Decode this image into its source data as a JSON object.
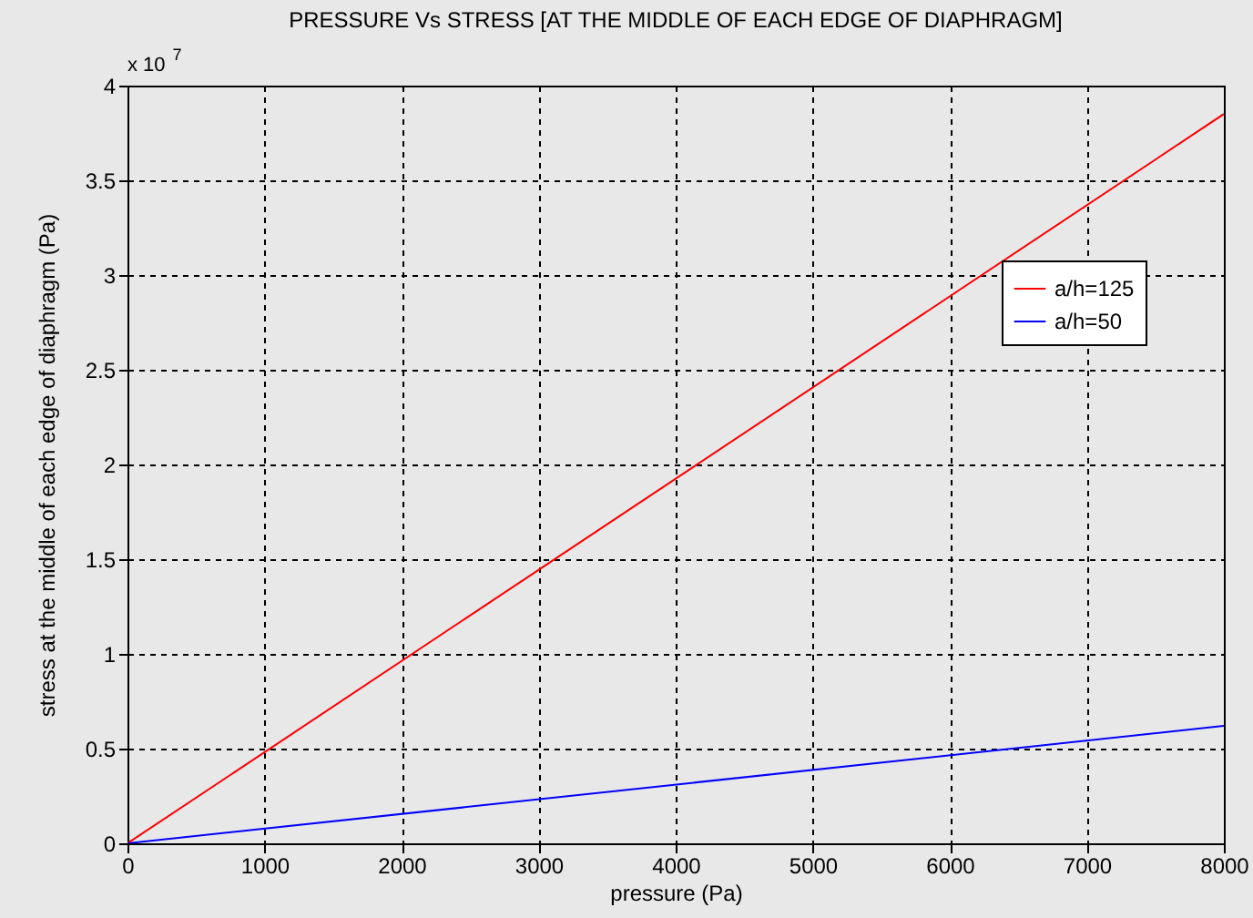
{
  "chart_data": {
    "type": "line",
    "title": "PRESSURE Vs STRESS [AT THE MIDDLE OF EACH EDGE OF DIAPHRAGM]",
    "xlabel": "pressure (Pa)",
    "ylabel": "stress at the middle of each edge of diaphragm (Pa)",
    "annotations": [
      "x 10$^{7}$"
    ],
    "x": [
      0,
      8000
    ],
    "series": [
      {
        "name": "a/h=125",
        "color": "#ff0000",
        "values": [
          0,
          3.85
        ]
      },
      {
        "name": "a/h=50",
        "color": "#0000ff",
        "values": [
          0,
          0.62
        ]
      }
    ],
    "xlim": [
      0,
      8000
    ],
    "xticks": [
      0,
      1000,
      2000,
      3000,
      4000,
      5000,
      6000,
      7000,
      8000
    ],
    "ylim": [
      0,
      4
    ],
    "yticks": [
      0,
      0.5,
      1,
      1.5,
      2,
      2.5,
      3,
      3.5,
      4
    ],
    "grid": true,
    "legend": "right",
    "line_style": "solid"
  }
}
